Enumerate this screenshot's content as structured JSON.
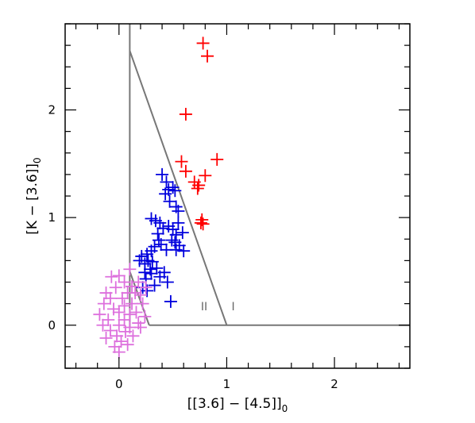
{
  "chart_data": {
    "type": "scatter",
    "title": "",
    "xlabel": "[[3.6] − [4.5]]",
    "xlabel_sub": "0",
    "ylabel": "[K − [3.6]]",
    "ylabel_sub": "0",
    "xlim": [
      -0.5,
      2.7
    ],
    "ylim": [
      -0.4,
      2.8
    ],
    "xticks": [
      0,
      1,
      2
    ],
    "yticks": [
      0,
      1,
      2
    ],
    "grid": false,
    "colors": {
      "red": "#ff0000",
      "blue": "#0000dd",
      "pink": "#dd70dd",
      "boundary": "#777777"
    },
    "region_labels": [
      "II",
      "I"
    ],
    "region_label_positions": [
      [
        0.79,
        0.14
      ],
      [
        1.06,
        0.14
      ]
    ],
    "boundaries": [
      {
        "name": "class-II-left",
        "x": [
          0.1,
          0.1
        ],
        "y": [
          -0.02,
          2.8
        ]
      },
      {
        "name": "class-II-I-diagonal",
        "x": [
          0.1,
          1.0
        ],
        "y": [
          2.55,
          0.0
        ]
      },
      {
        "name": "lower-left-diagonal",
        "x": [
          0.1,
          0.28
        ],
        "y": [
          0.5,
          0.0
        ]
      },
      {
        "name": "bottom-line",
        "x": [
          0.28,
          2.7
        ],
        "y": [
          0.0,
          0.0
        ]
      }
    ],
    "series": [
      {
        "color": "#ff0000",
        "points": [
          [
            0.78,
            2.62
          ],
          [
            0.82,
            2.5
          ],
          [
            0.62,
            1.96
          ],
          [
            0.91,
            1.54
          ],
          [
            0.58,
            1.52
          ],
          [
            0.62,
            1.43
          ],
          [
            0.8,
            1.39
          ],
          [
            0.7,
            1.33
          ],
          [
            0.74,
            1.3
          ],
          [
            0.73,
            1.27
          ],
          [
            0.77,
            0.98
          ],
          [
            0.76,
            0.95
          ],
          [
            0.78,
            0.94
          ]
        ]
      },
      {
        "color": "#0000dd",
        "points": [
          [
            0.4,
            1.4
          ],
          [
            0.44,
            1.33
          ],
          [
            0.46,
            1.26
          ],
          [
            0.43,
            1.22
          ],
          [
            0.5,
            1.28
          ],
          [
            0.52,
            1.25
          ],
          [
            0.47,
            1.15
          ],
          [
            0.53,
            1.1
          ],
          [
            0.55,
            1.06
          ],
          [
            0.3,
            0.99
          ],
          [
            0.34,
            0.97
          ],
          [
            0.38,
            0.95
          ],
          [
            0.41,
            0.9
          ],
          [
            0.46,
            0.92
          ],
          [
            0.55,
            0.95
          ],
          [
            0.59,
            0.86
          ],
          [
            0.5,
            0.89
          ],
          [
            0.53,
            0.84
          ],
          [
            0.49,
            0.79
          ],
          [
            0.52,
            0.77
          ],
          [
            0.56,
            0.74
          ],
          [
            0.53,
            0.7
          ],
          [
            0.6,
            0.69
          ],
          [
            0.36,
            0.85
          ],
          [
            0.37,
            0.79
          ],
          [
            0.39,
            0.75
          ],
          [
            0.33,
            0.73
          ],
          [
            0.3,
            0.69
          ],
          [
            0.44,
            0.7
          ],
          [
            0.26,
            0.66
          ],
          [
            0.21,
            0.64
          ],
          [
            0.19,
            0.6
          ],
          [
            0.24,
            0.57
          ],
          [
            0.27,
            0.6
          ],
          [
            0.31,
            0.59
          ],
          [
            0.29,
            0.52
          ],
          [
            0.24,
            0.49
          ],
          [
            0.25,
            0.43
          ],
          [
            0.3,
            0.48
          ],
          [
            0.35,
            0.53
          ],
          [
            0.38,
            0.45
          ],
          [
            0.42,
            0.49
          ],
          [
            0.45,
            0.4
          ],
          [
            0.22,
            0.35
          ],
          [
            0.26,
            0.32
          ],
          [
            0.33,
            0.37
          ],
          [
            0.48,
            0.22
          ]
        ]
      },
      {
        "color": "#dd70dd",
        "points": [
          [
            0.1,
            0.52
          ],
          [
            0.0,
            0.46
          ],
          [
            -0.07,
            0.45
          ],
          [
            0.18,
            0.4
          ],
          [
            0.25,
            0.35
          ],
          [
            0.05,
            0.4
          ],
          [
            0.12,
            0.36
          ],
          [
            -0.03,
            0.35
          ],
          [
            0.08,
            0.3
          ],
          [
            0.15,
            0.3
          ],
          [
            0.2,
            0.28
          ],
          [
            -0.12,
            0.3
          ],
          [
            -0.08,
            0.25
          ],
          [
            0.03,
            0.25
          ],
          [
            0.22,
            0.2
          ],
          [
            -0.14,
            0.2
          ],
          [
            0.05,
            0.18
          ],
          [
            0.12,
            0.2
          ],
          [
            0.0,
            0.12
          ],
          [
            -0.05,
            0.15
          ],
          [
            0.16,
            0.12
          ],
          [
            0.1,
            0.1
          ],
          [
            -0.18,
            0.1
          ],
          [
            0.24,
            0.08
          ],
          [
            -0.1,
            0.05
          ],
          [
            0.05,
            0.05
          ],
          [
            0.18,
            0.02
          ],
          [
            -0.15,
            0.0
          ],
          [
            0.0,
            0.0
          ],
          [
            0.1,
            -0.02
          ],
          [
            0.2,
            -0.02
          ],
          [
            -0.08,
            -0.05
          ],
          [
            0.06,
            -0.06
          ],
          [
            -0.02,
            -0.1
          ],
          [
            0.13,
            -0.1
          ],
          [
            0.02,
            -0.15
          ],
          [
            -0.04,
            -0.2
          ],
          [
            0.0,
            -0.25
          ],
          [
            0.08,
            -0.18
          ],
          [
            -0.12,
            -0.12
          ]
        ]
      }
    ]
  }
}
